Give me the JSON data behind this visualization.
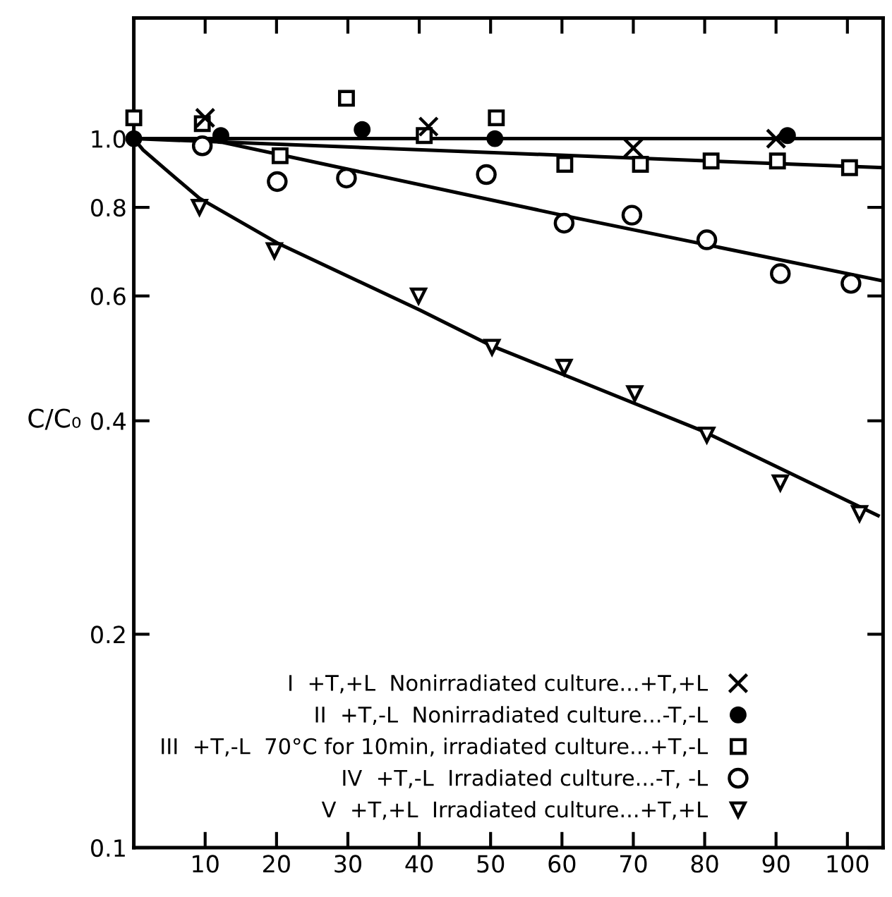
{
  "chart_data": {
    "type": "scatter",
    "ylabel": "C/C₀",
    "log": "y",
    "xlim": [
      0,
      105
    ],
    "xticks": [
      10,
      20,
      30,
      40,
      50,
      60,
      70,
      80,
      90,
      100
    ],
    "ylim": [
      0.1,
      1.48
    ],
    "yticks": [
      {
        "value": 0.1,
        "label": "0.1"
      },
      {
        "value": 0.2,
        "label": "0.2"
      },
      {
        "value": 0.4,
        "label": "0.4"
      },
      {
        "value": 0.6,
        "label": "0.6"
      },
      {
        "value": 0.8,
        "label": "0.8"
      },
      {
        "value": 1.0,
        "label": "1.0"
      }
    ],
    "grid": false,
    "legend": "bottom left",
    "series": [
      {
        "name": "I  +T,+L  Nonirradiated culture...+T,+L",
        "color": "#000000",
        "marker": "cross",
        "x": [
          10,
          41.3,
          70,
          90
        ],
        "values": [
          1.07,
          1.04,
          0.97,
          1.0
        ]
      },
      {
        "name": "II  +T,-L  Nonirradiated culture...-T,-L",
        "color": "#000000",
        "marker": "circle",
        "x": [
          0,
          12.2,
          32,
          50.6,
          91.6
        ],
        "values": [
          1.0,
          1.01,
          1.03,
          1.0,
          1.01
        ]
      },
      {
        "name": "III  +T,-L  70°C for 10min, irradiated culture...+T,-L",
        "color": "#000000",
        "marker": "square",
        "x": [
          0,
          9.6,
          20.5,
          29.8,
          40.7,
          50.8,
          60.4,
          71,
          80.9,
          90.2,
          100.3
        ],
        "values": [
          1.07,
          1.05,
          0.946,
          1.14,
          1.01,
          1.07,
          0.92,
          0.92,
          0.93,
          0.93,
          0.91
        ]
      },
      {
        "name": "IV  +T,-L  Irradiated culture...-T, -L",
        "color": "#000000",
        "marker": "circle",
        "x": [
          9.6,
          20.1,
          29.8,
          49.4,
          60.3,
          69.8,
          80.3,
          90.6,
          100.5
        ],
        "values": [
          0.977,
          0.87,
          0.88,
          0.89,
          0.76,
          0.78,
          0.72,
          0.645,
          0.625
        ]
      },
      {
        "name": "V  +T,+L  Irradiated culture...+T,+L",
        "color": "#000000",
        "marker": "triangle",
        "x": [
          9.2,
          19.7,
          39.9,
          50.2,
          60.3,
          70.2,
          80.3,
          90.6,
          101.7
        ],
        "values": [
          0.8,
          0.695,
          0.6,
          0.508,
          0.476,
          0.437,
          0.382,
          0.327,
          0.296
        ]
      },
      {
        "type": "line",
        "color": "#000000",
        "marker": "none",
        "x": [
          0,
          105
        ],
        "values": [
          1.0,
          1.0
        ]
      },
      {
        "type": "line",
        "color": "#000000",
        "marker": "none",
        "x": [
          0,
          105
        ],
        "values": [
          1.0,
          0.91
        ]
      },
      {
        "type": "line",
        "color": "#000000",
        "marker": "none",
        "x": [
          10,
          60,
          105
        ],
        "values": [
          1.0,
          0.78,
          0.63
        ]
      },
      {
        "type": "line",
        "color": "#000000",
        "marker": "none",
        "x": [
          0,
          1.3,
          4.5,
          9.2,
          20.3,
          40.1,
          50.2,
          59.9,
          79.7,
          104.3
        ],
        "values": [
          1.0,
          0.964,
          0.904,
          0.824,
          0.711,
          0.573,
          0.51,
          0.466,
          0.387,
          0.294
        ]
      }
    ]
  }
}
